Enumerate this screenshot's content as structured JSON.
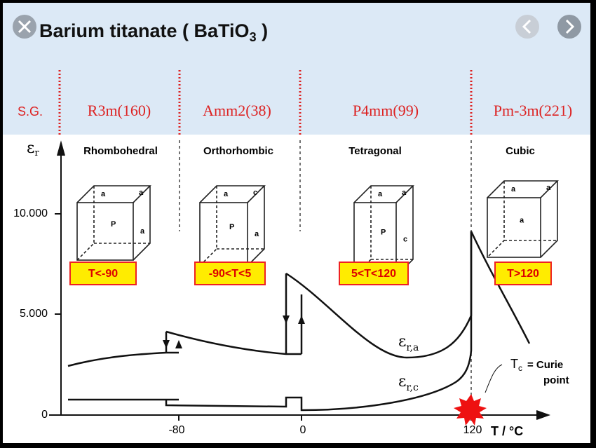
{
  "title": {
    "main": "Barium titanate ( BaTiO",
    "sub": "3",
    "end": " )"
  },
  "space_groups": {
    "label": "S.G.",
    "items": [
      "R3m(160)",
      "Amm2(38)",
      "P4mm(99)",
      "Pm-3m(221)"
    ]
  },
  "phases": [
    "Rhombohedral",
    "Orthorhombic",
    "Tetragonal",
    "Cubic"
  ],
  "conditions": [
    "T<-90",
    "-90<T<5",
    "5<T<120",
    "T>120"
  ],
  "cell_labels": [
    [
      "a",
      "a",
      "P",
      "a"
    ],
    [
      "a",
      "c",
      "P",
      "a"
    ],
    [
      "a",
      "a",
      "P",
      "c"
    ],
    [
      "a",
      "a",
      "a"
    ]
  ],
  "axes": {
    "y_label": "ε",
    "y_label_sub": "r",
    "y_ticks": [
      "10.000",
      "5.000",
      "0"
    ],
    "x_ticks": [
      "-80",
      "0",
      "120"
    ],
    "x_label": "T / °C"
  },
  "curve_labels": [
    {
      "main": "ε",
      "sub": "r,a"
    },
    {
      "main": "ε",
      "sub": "r,c"
    }
  ],
  "curie": {
    "symbol": "T",
    "sub": "c",
    "line1": "= Curie",
    "line2": "point"
  }
}
